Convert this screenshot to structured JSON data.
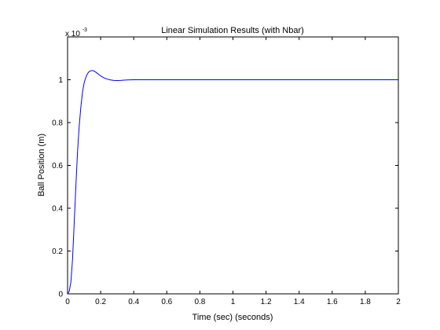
{
  "chart_data": {
    "type": "line",
    "title": "Linear Simulation Results (with Nbar)",
    "xlabel": "Time (sec) (seconds)",
    "ylabel": "Ball Position (m)",
    "exponent_label": {
      "base": "x 10",
      "power": "-3"
    },
    "xlim": [
      0,
      2
    ],
    "ylim": [
      0,
      1.2
    ],
    "x_ticks": [
      0,
      0.2,
      0.4,
      0.6,
      0.8,
      1,
      1.2,
      1.4,
      1.6,
      1.8,
      2
    ],
    "x_tick_labels": [
      "0",
      "0.2",
      "0.4",
      "0.6",
      "0.8",
      "1",
      "1.2",
      "1.4",
      "1.6",
      "1.8",
      "2"
    ],
    "y_ticks": [
      0,
      0.2,
      0.4,
      0.6,
      0.8,
      1
    ],
    "y_tick_labels": [
      "0",
      "0.2",
      "0.4",
      "0.6",
      "0.8",
      "1"
    ],
    "grid": false,
    "series": [
      {
        "color": "#0000ff",
        "x": [
          0,
          0.01,
          0.02,
          0.03,
          0.04,
          0.05,
          0.06,
          0.07,
          0.08,
          0.09,
          0.1,
          0.11,
          0.12,
          0.13,
          0.14,
          0.15,
          0.16,
          0.17,
          0.18,
          0.19,
          0.2,
          0.22,
          0.24,
          0.26,
          0.28,
          0.3,
          0.32,
          0.34,
          0.36,
          0.38,
          0.4,
          0.5,
          0.7,
          1.0,
          1.5,
          2.0
        ],
        "y": [
          0,
          0.012,
          0.055,
          0.16,
          0.33,
          0.5,
          0.66,
          0.78,
          0.87,
          0.94,
          0.985,
          1.01,
          1.028,
          1.038,
          1.042,
          1.043,
          1.041,
          1.036,
          1.03,
          1.024,
          1.018,
          1.009,
          1.003,
          0.999,
          0.997,
          0.9965,
          0.997,
          0.998,
          0.999,
          0.9995,
          1.0,
          1.0,
          1.0,
          1.0,
          1.0,
          1.0
        ]
      }
    ]
  }
}
